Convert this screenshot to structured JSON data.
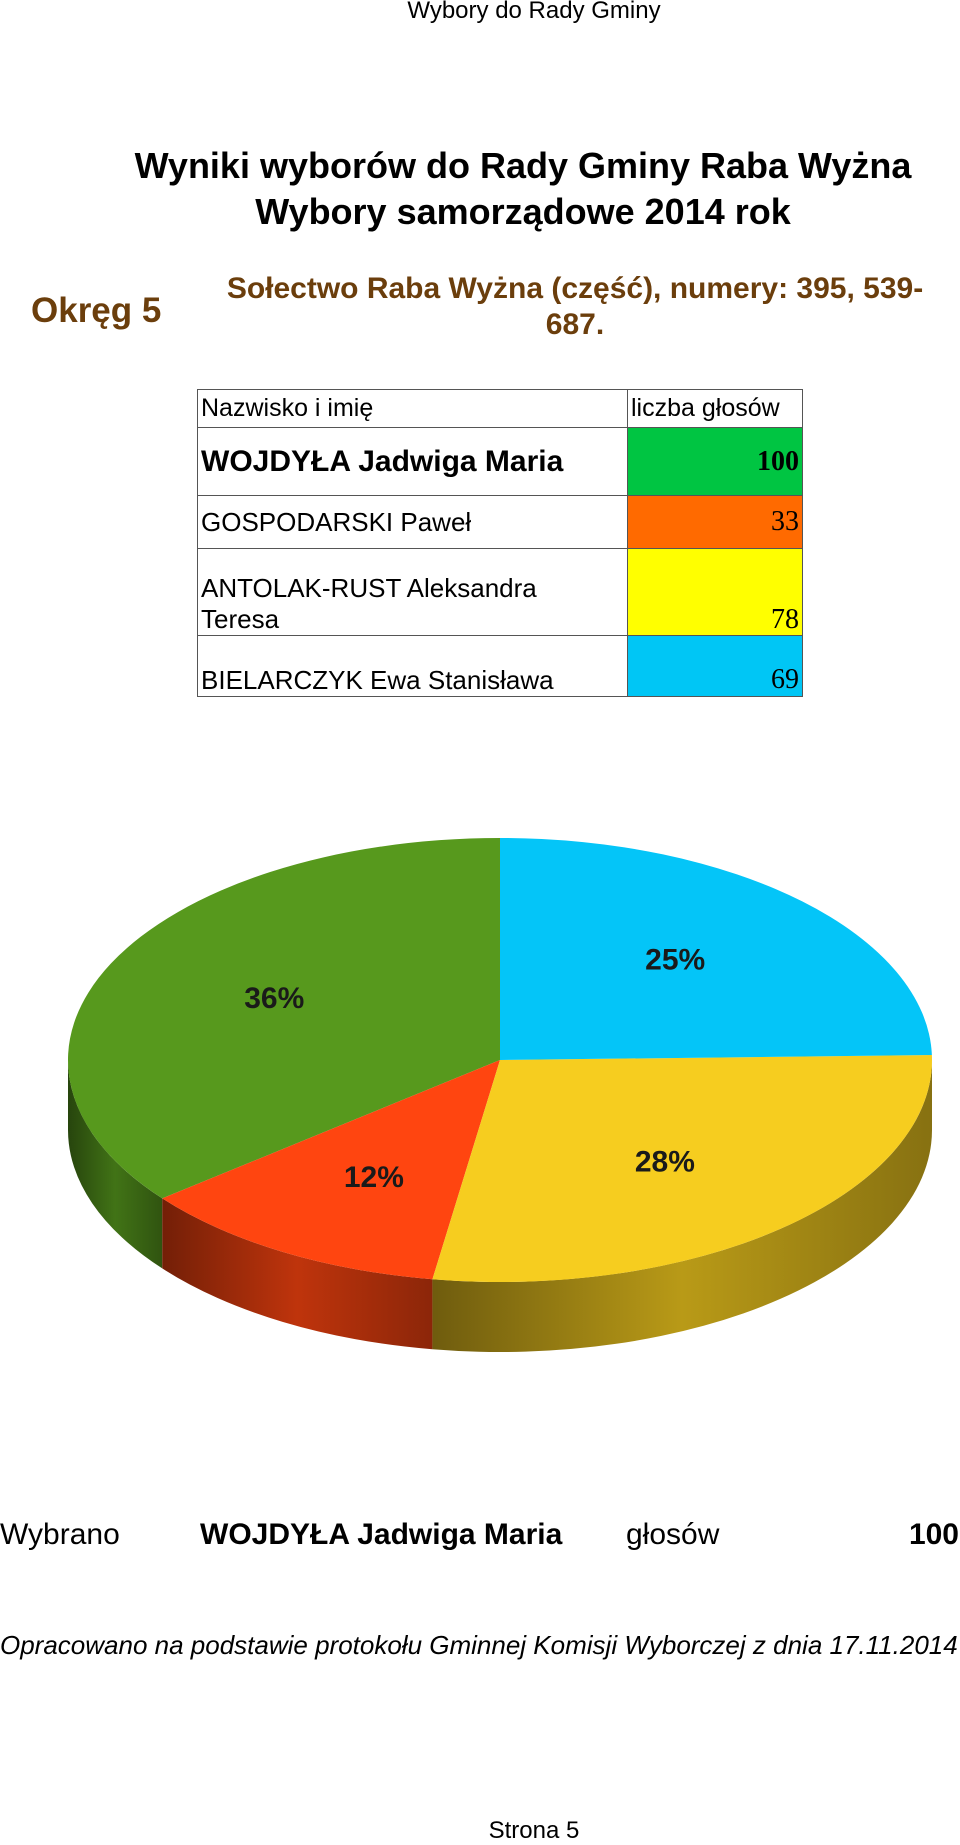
{
  "header": {
    "title": "Wybory do Rady Gminy"
  },
  "title": {
    "line1": "Wyniki wyborów do Rady Gminy Raba Wyżna",
    "line2": "Wybory samorządowe 2014 rok"
  },
  "district": {
    "label": "Okręg 5",
    "area_line1": "Sołectwo Raba Wyżna (część), numery: 395, 539-",
    "area_line2": "687."
  },
  "table": {
    "col_name": "Nazwisko i imię",
    "col_votes": "liczba głosów",
    "rows": [
      {
        "name": "WOJDYŁA Jadwiga Maria",
        "votes": "100",
        "color": "#00c542"
      },
      {
        "name": "GOSPODARSKI Paweł",
        "votes": "33",
        "color": "#ff6a00"
      },
      {
        "name_line1": "ANTOLAK-RUST Aleksandra",
        "name_line2": "Teresa",
        "votes": "78",
        "color": "#ffff00"
      },
      {
        "name": "BIELARCZYK Ewa Stanisława",
        "votes": "69",
        "color": "#00c6f5"
      }
    ]
  },
  "chart_data": {
    "type": "pie",
    "title": "",
    "slices": [
      {
        "value": 100,
        "label": "36%",
        "color": "#57991d"
      },
      {
        "value": 33,
        "label": "12%",
        "color": "#ff4510"
      },
      {
        "value": 78,
        "label": "28%",
        "color": "#f6cd1f"
      },
      {
        "value": 69,
        "label": "25%",
        "color": "#04c5f8"
      }
    ]
  },
  "elected": {
    "label": "Wybrano",
    "name": "WOJDYŁA Jadwiga Maria",
    "votes_label": "głosów",
    "votes": "100"
  },
  "footnote": "Opracowano na podstawie protokołu Gminnej Komisji Wyborczej z dnia 17.11.2014",
  "footer": {
    "page": "Strona 5"
  }
}
